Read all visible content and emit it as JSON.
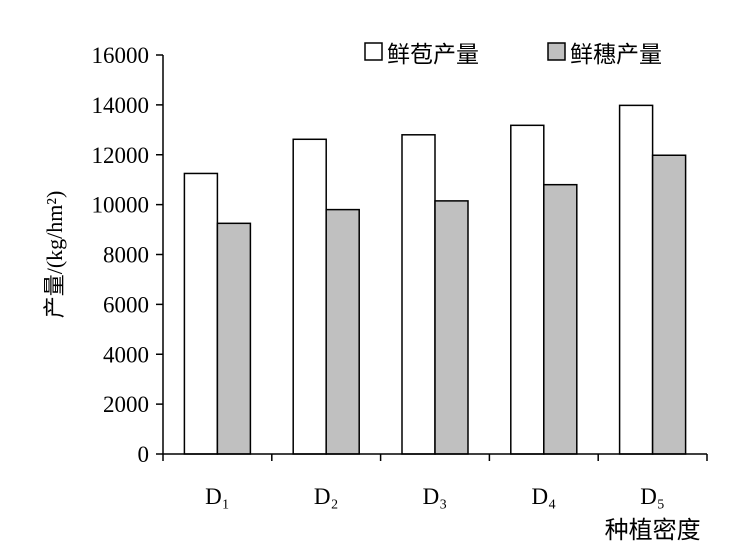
{
  "chart_data": {
    "type": "bar",
    "categories": [
      "D₁",
      "D₂",
      "D₃",
      "D₄",
      "D₅"
    ],
    "series": [
      {
        "name": "鲜苞产量",
        "values": [
          11250,
          12620,
          12800,
          13180,
          13980
        ],
        "color": "#ffffff"
      },
      {
        "name": "鲜穗产量",
        "values": [
          9250,
          9800,
          10150,
          10800,
          11980
        ],
        "color": "#c0c0c0"
      }
    ],
    "title": "",
    "xlabel": "种植密度",
    "ylabel": "产量/(kg/hm²)",
    "ylim": [
      0,
      16000
    ],
    "yticks": [
      0,
      2000,
      4000,
      6000,
      8000,
      10000,
      12000,
      14000,
      16000
    ],
    "grid": false,
    "legend_position": "top-right"
  }
}
